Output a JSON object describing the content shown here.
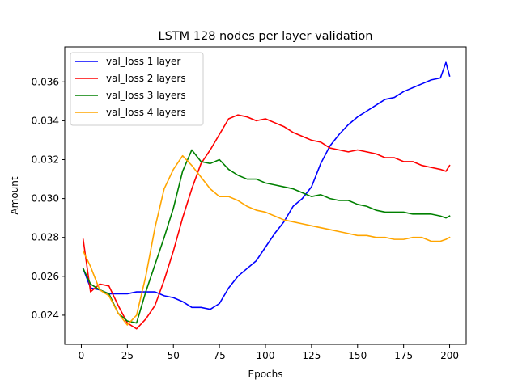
{
  "chart_data": {
    "type": "line",
    "title": "LSTM 128 nodes per layer validation",
    "xlabel": "Epochs",
    "ylabel": "Amount",
    "xlim": [
      -9,
      209
    ],
    "ylim": [
      0.0225,
      0.0378
    ],
    "xticks": [
      0,
      25,
      50,
      75,
      100,
      125,
      150,
      175,
      200
    ],
    "yticks": [
      0.024,
      0.026,
      0.028,
      0.03,
      0.032,
      0.034,
      0.036
    ],
    "ytick_labels": [
      "0.024",
      "0.026",
      "0.028",
      "0.030",
      "0.032",
      "0.034",
      "0.036"
    ],
    "legend_position": "top-left",
    "grid": false,
    "series": [
      {
        "name": "val_loss 1 layer",
        "color": "#0000ff",
        "x": [
          1,
          5,
          10,
          15,
          20,
          25,
          30,
          35,
          40,
          45,
          50,
          55,
          60,
          65,
          70,
          75,
          80,
          85,
          90,
          95,
          100,
          105,
          110,
          115,
          120,
          125,
          130,
          135,
          140,
          145,
          150,
          155,
          160,
          165,
          170,
          175,
          180,
          185,
          190,
          195,
          198,
          200
        ],
        "y": [
          0.0264,
          0.0254,
          0.0253,
          0.0251,
          0.0251,
          0.0251,
          0.0252,
          0.0252,
          0.0252,
          0.025,
          0.0249,
          0.0247,
          0.0244,
          0.0244,
          0.0243,
          0.0246,
          0.0254,
          0.026,
          0.0264,
          0.0268,
          0.0275,
          0.0282,
          0.0288,
          0.0296,
          0.03,
          0.0306,
          0.0318,
          0.0327,
          0.0333,
          0.0338,
          0.0342,
          0.0345,
          0.0348,
          0.0351,
          0.0352,
          0.0355,
          0.0357,
          0.0359,
          0.0361,
          0.0362,
          0.037,
          0.0363
        ]
      },
      {
        "name": "val_loss 2 layers",
        "color": "#ff0000",
        "x": [
          1,
          5,
          10,
          15,
          20,
          25,
          30,
          35,
          40,
          45,
          50,
          55,
          60,
          65,
          70,
          75,
          80,
          85,
          90,
          95,
          100,
          105,
          110,
          115,
          120,
          125,
          130,
          135,
          140,
          145,
          150,
          155,
          160,
          165,
          170,
          175,
          180,
          185,
          190,
          195,
          198,
          200
        ],
        "y": [
          0.0279,
          0.0252,
          0.0256,
          0.0255,
          0.0245,
          0.0236,
          0.0233,
          0.0238,
          0.0245,
          0.0258,
          0.0273,
          0.029,
          0.0305,
          0.0318,
          0.0325,
          0.0333,
          0.0341,
          0.0343,
          0.0342,
          0.034,
          0.0341,
          0.0339,
          0.0337,
          0.0334,
          0.0332,
          0.033,
          0.0329,
          0.0326,
          0.0325,
          0.0324,
          0.0325,
          0.0324,
          0.0323,
          0.0321,
          0.0321,
          0.0319,
          0.0319,
          0.0317,
          0.0316,
          0.0315,
          0.0314,
          0.0317
        ]
      },
      {
        "name": "val_loss 3 layers",
        "color": "#008000",
        "x": [
          1,
          5,
          10,
          15,
          20,
          25,
          30,
          35,
          40,
          45,
          50,
          55,
          60,
          65,
          70,
          75,
          80,
          85,
          90,
          95,
          100,
          105,
          110,
          115,
          120,
          125,
          130,
          135,
          140,
          145,
          150,
          155,
          160,
          165,
          170,
          175,
          180,
          185,
          190,
          195,
          198,
          200
        ],
        "y": [
          0.0264,
          0.0256,
          0.0253,
          0.0251,
          0.0241,
          0.0237,
          0.0236,
          0.0252,
          0.0266,
          0.028,
          0.0295,
          0.0314,
          0.0325,
          0.0319,
          0.0318,
          0.032,
          0.0315,
          0.0312,
          0.031,
          0.031,
          0.0308,
          0.0307,
          0.0306,
          0.0305,
          0.0303,
          0.0301,
          0.0302,
          0.03,
          0.0299,
          0.0299,
          0.0297,
          0.0296,
          0.0294,
          0.0293,
          0.0293,
          0.0293,
          0.0292,
          0.0292,
          0.0292,
          0.0291,
          0.029,
          0.0291
        ]
      },
      {
        "name": "val_loss 4 layers",
        "color": "#ffa500",
        "x": [
          1,
          5,
          10,
          15,
          20,
          25,
          30,
          35,
          40,
          45,
          50,
          55,
          60,
          65,
          70,
          75,
          80,
          85,
          90,
          95,
          100,
          105,
          110,
          115,
          120,
          125,
          130,
          135,
          140,
          145,
          150,
          155,
          160,
          165,
          170,
          175,
          180,
          185,
          190,
          195,
          198,
          200
        ],
        "y": [
          0.0273,
          0.0265,
          0.0253,
          0.025,
          0.0241,
          0.0235,
          0.024,
          0.026,
          0.0285,
          0.0305,
          0.0315,
          0.0322,
          0.0317,
          0.0311,
          0.0305,
          0.0301,
          0.0301,
          0.0299,
          0.0296,
          0.0294,
          0.0293,
          0.0291,
          0.0289,
          0.0288,
          0.0287,
          0.0286,
          0.0285,
          0.0284,
          0.0283,
          0.0282,
          0.0281,
          0.0281,
          0.028,
          0.028,
          0.0279,
          0.0279,
          0.028,
          0.028,
          0.0278,
          0.0278,
          0.0279,
          0.028
        ]
      }
    ]
  }
}
